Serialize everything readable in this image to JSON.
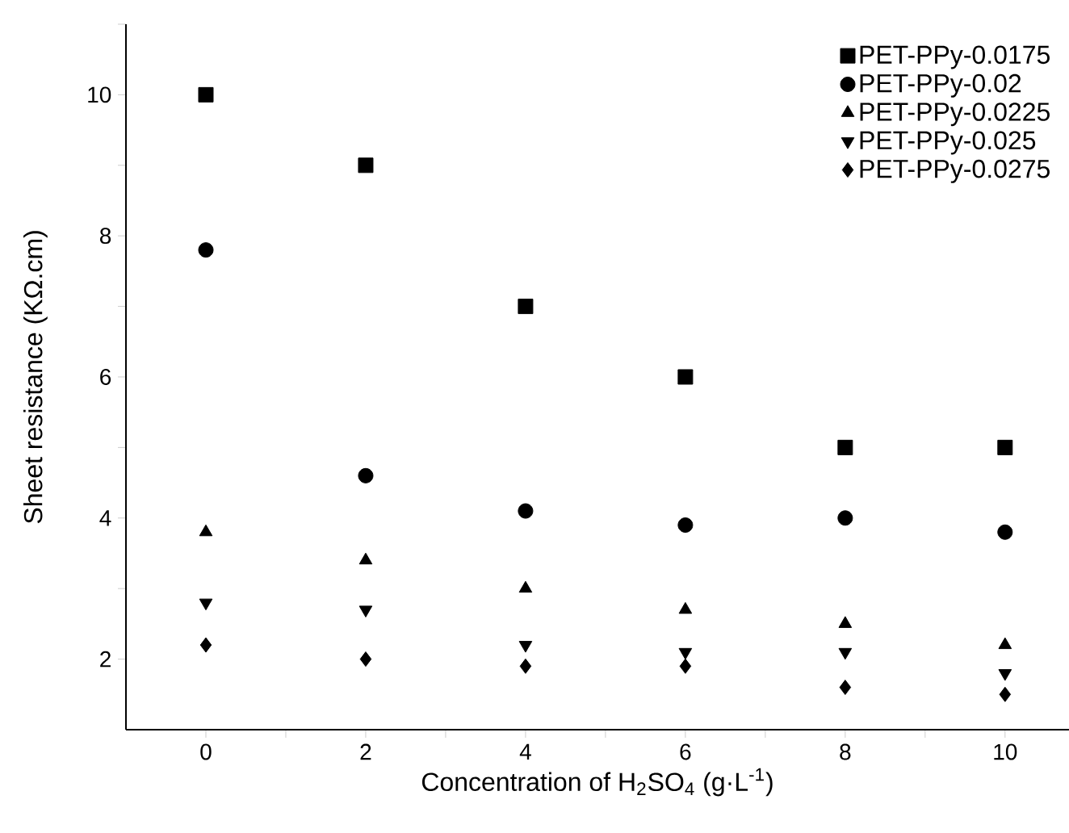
{
  "chart_data": {
    "type": "scatter",
    "xlabel": "Concentration of H$_{2}$SO$_{4}$ (g·L$^{-1}$)",
    "ylabel": "Sheet resistance (KΩ.cm)",
    "x": [
      0,
      2,
      4,
      6,
      8,
      10
    ],
    "series": [
      {
        "name": "PET-PPy-0.0175",
        "color": "#000000",
        "marker": "square",
        "values": [
          10,
          9,
          7,
          6,
          5,
          5
        ]
      },
      {
        "name": "PET-PPy-0.02",
        "color": "#000000",
        "marker": "circle",
        "values": [
          7.8,
          4.6,
          4.1,
          3.9,
          4.0,
          3.8
        ]
      },
      {
        "name": "PET-PPy-0.0225",
        "color": "#000000",
        "marker": "triangle",
        "values": [
          3.8,
          3.4,
          3.0,
          2.7,
          2.5,
          2.2
        ]
      },
      {
        "name": "PET-PPy-0.025",
        "color": "#000000",
        "marker": "triangle-down",
        "values": [
          2.8,
          2.7,
          2.2,
          2.1,
          2.1,
          1.8
        ]
      },
      {
        "name": "PET-PPy-0.0275",
        "color": "#000000",
        "marker": "diamond",
        "values": [
          2.2,
          2.0,
          1.9,
          1.9,
          1.6,
          1.5
        ]
      }
    ],
    "xlim": [
      -1,
      10.8
    ],
    "ylim": [
      1,
      11
    ],
    "xticks": [
      0,
      {
        "value": 1,
        "label": null
      },
      2,
      {
        "value": 3,
        "label": null
      },
      4,
      {
        "value": 5,
        "label": null
      },
      6,
      {
        "value": 7,
        "label": null
      },
      8,
      {
        "value": 9,
        "label": null
      },
      10
    ],
    "yticks": [
      2,
      {
        "value": 3,
        "label": null
      },
      4,
      {
        "value": 5,
        "label": null
      },
      6,
      {
        "value": 7,
        "label": null
      },
      8,
      {
        "value": 9,
        "label": null
      },
      10,
      {
        "value": 11,
        "label": null
      }
    ],
    "legend": "top right",
    "grid": false
  }
}
